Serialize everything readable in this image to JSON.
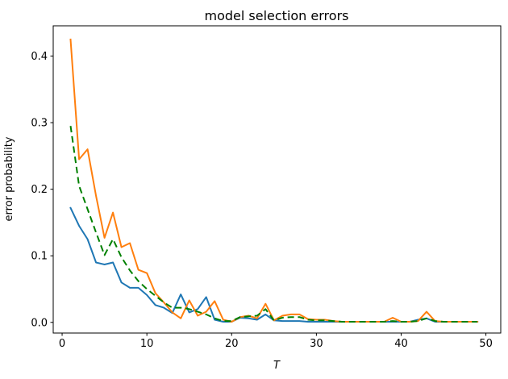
{
  "figure_title": "model selection errors",
  "chart_data": {
    "type": "line",
    "title": "model selection errors",
    "xlabel": "T",
    "ylabel": "error probability",
    "grid": false,
    "legend": null,
    "xlim": [
      -1.05,
      51.75
    ],
    "ylim": [
      -0.016,
      0.4455
    ],
    "xticks": [
      0,
      10,
      20,
      30,
      40,
      50
    ],
    "yticks": [
      "0.0",
      "0.1",
      "0.2",
      "0.3",
      "0.4"
    ],
    "x": [
      1,
      2,
      3,
      4,
      5,
      6,
      7,
      8,
      9,
      10,
      11,
      12,
      13,
      14,
      15,
      16,
      17,
      18,
      19,
      20,
      21,
      22,
      23,
      24,
      25,
      26,
      27,
      28,
      29,
      30,
      31,
      32,
      33,
      34,
      35,
      36,
      37,
      38,
      39,
      40,
      41,
      42,
      43,
      44,
      45,
      46,
      47,
      48,
      49
    ],
    "series": [
      {
        "name": "blue-series",
        "color": "#1f77b4",
        "style": "solid",
        "values": [
          0.172,
          0.145,
          0.125,
          0.09,
          0.087,
          0.09,
          0.06,
          0.052,
          0.052,
          0.041,
          0.026,
          0.022,
          0.014,
          0.042,
          0.015,
          0.02,
          0.038,
          0.004,
          0.001,
          0.001,
          0.007,
          0.006,
          0.004,
          0.012,
          0.003,
          0.002,
          0.002,
          0.002,
          0.001,
          0.001,
          0.001,
          0.001,
          0.001,
          0.001,
          0.001,
          0.001,
          0.001,
          0.001,
          0.001,
          0.001,
          0.001,
          0.004,
          0.006,
          0.001,
          0.001,
          0.001,
          0.001,
          0.001,
          0.001
        ]
      },
      {
        "name": "orange-series",
        "color": "#ff7f0e",
        "style": "solid",
        "values": [
          0.425,
          0.245,
          0.26,
          0.19,
          0.127,
          0.165,
          0.113,
          0.119,
          0.079,
          0.074,
          0.044,
          0.03,
          0.015,
          0.006,
          0.033,
          0.01,
          0.016,
          0.032,
          0.004,
          0.001,
          0.008,
          0.01,
          0.006,
          0.028,
          0.003,
          0.01,
          0.012,
          0.012,
          0.005,
          0.004,
          0.004,
          0.002,
          0.001,
          0.001,
          0.001,
          0.001,
          0.001,
          0.001,
          0.007,
          0.001,
          0.001,
          0.002,
          0.016,
          0.002,
          0.001,
          0.001,
          0.001,
          0.001,
          0.001
        ]
      },
      {
        "name": "green-dashed-series",
        "color": "#008000",
        "style": "dashed",
        "values": [
          0.295,
          0.205,
          0.17,
          0.135,
          0.101,
          0.125,
          0.098,
          0.078,
          0.062,
          0.05,
          0.04,
          0.03,
          0.022,
          0.022,
          0.02,
          0.016,
          0.012,
          0.006,
          0.002,
          0.002,
          0.008,
          0.009,
          0.01,
          0.02,
          0.003,
          0.007,
          0.008,
          0.008,
          0.004,
          0.003,
          0.003,
          0.002,
          0.001,
          0.001,
          0.001,
          0.001,
          0.001,
          0.001,
          0.002,
          0.001,
          0.001,
          0.002,
          0.006,
          0.002,
          0.001,
          0.001,
          0.001,
          0.001,
          0.001
        ]
      }
    ]
  }
}
